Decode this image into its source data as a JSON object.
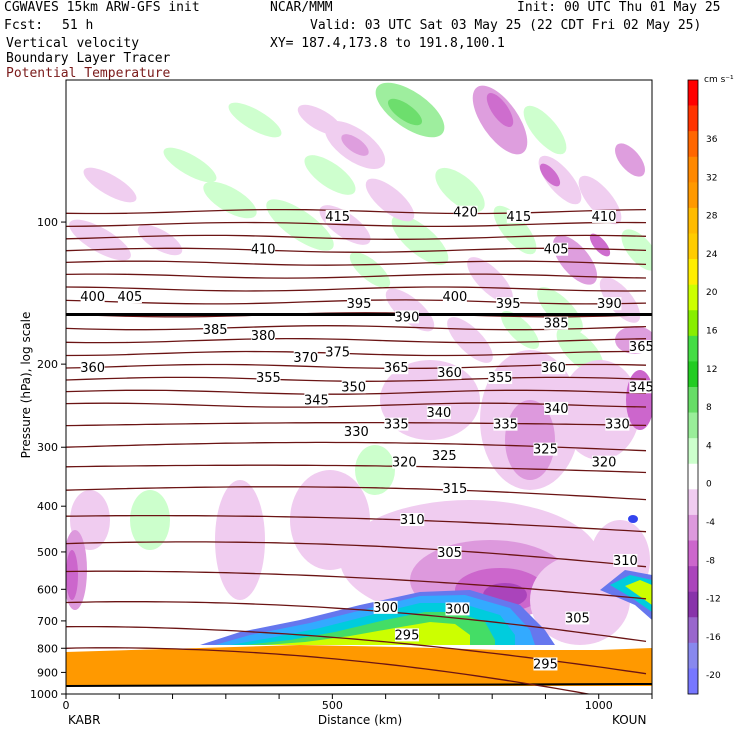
{
  "header": {
    "title": "CGWAVES 15km ARW-GFS init",
    "fcst_label": "Fcst:",
    "fcst_value": "51 h",
    "center": "NCAR/MMM",
    "init": "Init: 00 UTC Thu 01 May 25",
    "valid": "Valid: 03 UTC Sat 03 May 25 (22 CDT Fri 02 May 25)",
    "xy": "XY= 187.4,173.8 to 191.8,100.1",
    "field1": "Vertical velocity",
    "field2": "Boundary Layer Tracer",
    "field3": "Potential Temperature",
    "field3_color": "#7a1a1a"
  },
  "chart_data": {
    "type": "heatmap",
    "title": "Vertical velocity / Boundary Layer Tracer / Potential Temperature cross-section",
    "xlabel": "Distance (km)",
    "ylabel": "Pressure (hPa), log scale",
    "x_ticks": [
      "0",
      "500",
      "1000"
    ],
    "xlim": [
      0,
      1100
    ],
    "y_scale": "log",
    "ylim": [
      1000,
      50
    ],
    "y_ticks": [
      "100",
      "200",
      "300",
      "400",
      "500",
      "600",
      "700",
      "800",
      "900",
      "1000"
    ],
    "x_endpoints": {
      "left": "KABR",
      "right": "KOUN"
    },
    "colorbar": {
      "units": "cm s⁻¹",
      "labels": [
        "36",
        "32",
        "28",
        "24",
        "20",
        "16",
        "12",
        "8",
        "4",
        "0",
        "-4",
        "-8",
        "-12",
        "-16",
        "-20"
      ],
      "colors": [
        "#ff0000",
        "#ff3300",
        "#ff6600",
        "#ff8800",
        "#ff9900",
        "#ffbb00",
        "#ffcc00",
        "#ffee00",
        "#ccff00",
        "#88ee00",
        "#44dd44",
        "#22cc22",
        "#66dd66",
        "#99ee99",
        "#ccffcc",
        "#ffffff",
        "#f0ccf0",
        "#dd99dd",
        "#cc66cc",
        "#aa44bb",
        "#8833aa",
        "#9966cc",
        "#8888ee",
        "#7777ff"
      ]
    },
    "isentrope_labels": [
      {
        "x": 50,
        "p": 145,
        "text": "400"
      },
      {
        "x": 120,
        "p": 145,
        "text": "405"
      },
      {
        "x": 370,
        "p": 115,
        "text": "410"
      },
      {
        "x": 510,
        "p": 98,
        "text": "415"
      },
      {
        "x": 750,
        "p": 96,
        "text": "420"
      },
      {
        "x": 850,
        "p": 98,
        "text": "415"
      },
      {
        "x": 920,
        "p": 115,
        "text": "405"
      },
      {
        "x": 1010,
        "p": 98,
        "text": "410"
      },
      {
        "x": 280,
        "p": 170,
        "text": "385"
      },
      {
        "x": 370,
        "p": 175,
        "text": "380"
      },
      {
        "x": 550,
        "p": 150,
        "text": "395"
      },
      {
        "x": 640,
        "p": 160,
        "text": "390"
      },
      {
        "x": 730,
        "p": 145,
        "text": "400"
      },
      {
        "x": 830,
        "p": 150,
        "text": "395"
      },
      {
        "x": 920,
        "p": 165,
        "text": "385"
      },
      {
        "x": 1020,
        "p": 150,
        "text": "390"
      },
      {
        "x": 50,
        "p": 205,
        "text": "360"
      },
      {
        "x": 450,
        "p": 195,
        "text": "370"
      },
      {
        "x": 510,
        "p": 190,
        "text": "375"
      },
      {
        "x": 380,
        "p": 215,
        "text": "355"
      },
      {
        "x": 470,
        "p": 240,
        "text": "345"
      },
      {
        "x": 540,
        "p": 225,
        "text": "350"
      },
      {
        "x": 620,
        "p": 205,
        "text": "365"
      },
      {
        "x": 720,
        "p": 210,
        "text": "360"
      },
      {
        "x": 815,
        "p": 215,
        "text": "355"
      },
      {
        "x": 915,
        "p": 205,
        "text": "360"
      },
      {
        "x": 1080,
        "p": 225,
        "text": "345"
      },
      {
        "x": 1080,
        "p": 185,
        "text": "365"
      },
      {
        "x": 545,
        "p": 280,
        "text": "330"
      },
      {
        "x": 620,
        "p": 270,
        "text": "335"
      },
      {
        "x": 700,
        "p": 255,
        "text": "340"
      },
      {
        "x": 825,
        "p": 270,
        "text": "335"
      },
      {
        "x": 920,
        "p": 250,
        "text": "340"
      },
      {
        "x": 1035,
        "p": 270,
        "text": "330"
      },
      {
        "x": 635,
        "p": 325,
        "text": "320"
      },
      {
        "x": 710,
        "p": 315,
        "text": "325"
      },
      {
        "x": 900,
        "p": 305,
        "text": "325"
      },
      {
        "x": 1010,
        "p": 325,
        "text": "320"
      },
      {
        "x": 730,
        "p": 370,
        "text": "315"
      },
      {
        "x": 650,
        "p": 430,
        "text": "310"
      },
      {
        "x": 1050,
        "p": 525,
        "text": "310"
      },
      {
        "x": 720,
        "p": 505,
        "text": "305"
      },
      {
        "x": 960,
        "p": 695,
        "text": "305"
      },
      {
        "x": 600,
        "p": 660,
        "text": "300"
      },
      {
        "x": 735,
        "p": 665,
        "text": "300"
      },
      {
        "x": 640,
        "p": 755,
        "text": "295"
      },
      {
        "x": 900,
        "p": 870,
        "text": "295"
      }
    ]
  }
}
